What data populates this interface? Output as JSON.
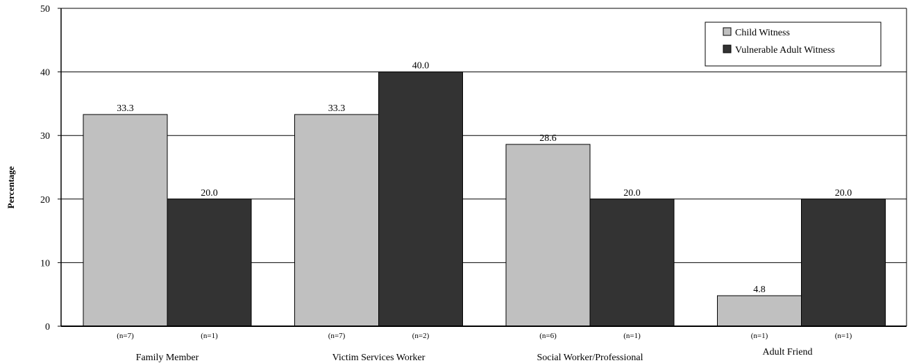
{
  "chart_data": {
    "type": "bar",
    "title": "",
    "xlabel": "",
    "ylabel": "Percentage",
    "ylim": [
      0,
      50
    ],
    "yticks": [
      0,
      10,
      20,
      30,
      40,
      50
    ],
    "grid": true,
    "legend_position": "top-right",
    "categories": [
      "Family Member",
      "Victim Services Worker",
      "Social Worker/Professional",
      "Adult Friend"
    ],
    "series": [
      {
        "name": "Child Witness",
        "color": "#c0c0c0",
        "values": [
          33.3,
          33.3,
          28.6,
          4.8
        ],
        "value_labels": [
          "33.3",
          "33.3",
          "28.6",
          "4.8"
        ],
        "n_labels": [
          "(n=7)",
          "(n=7)",
          "(n=6)",
          "(n=1)"
        ]
      },
      {
        "name": "Vulnerable Adult Witness",
        "color": "#333333",
        "values": [
          20.0,
          40.0,
          20.0,
          20.0
        ],
        "value_labels": [
          "20.0",
          "40.0",
          "20.0",
          "20.0"
        ],
        "n_labels": [
          "(n=1)",
          "(n=2)",
          "(n=1)",
          "(n=1)"
        ]
      }
    ]
  }
}
